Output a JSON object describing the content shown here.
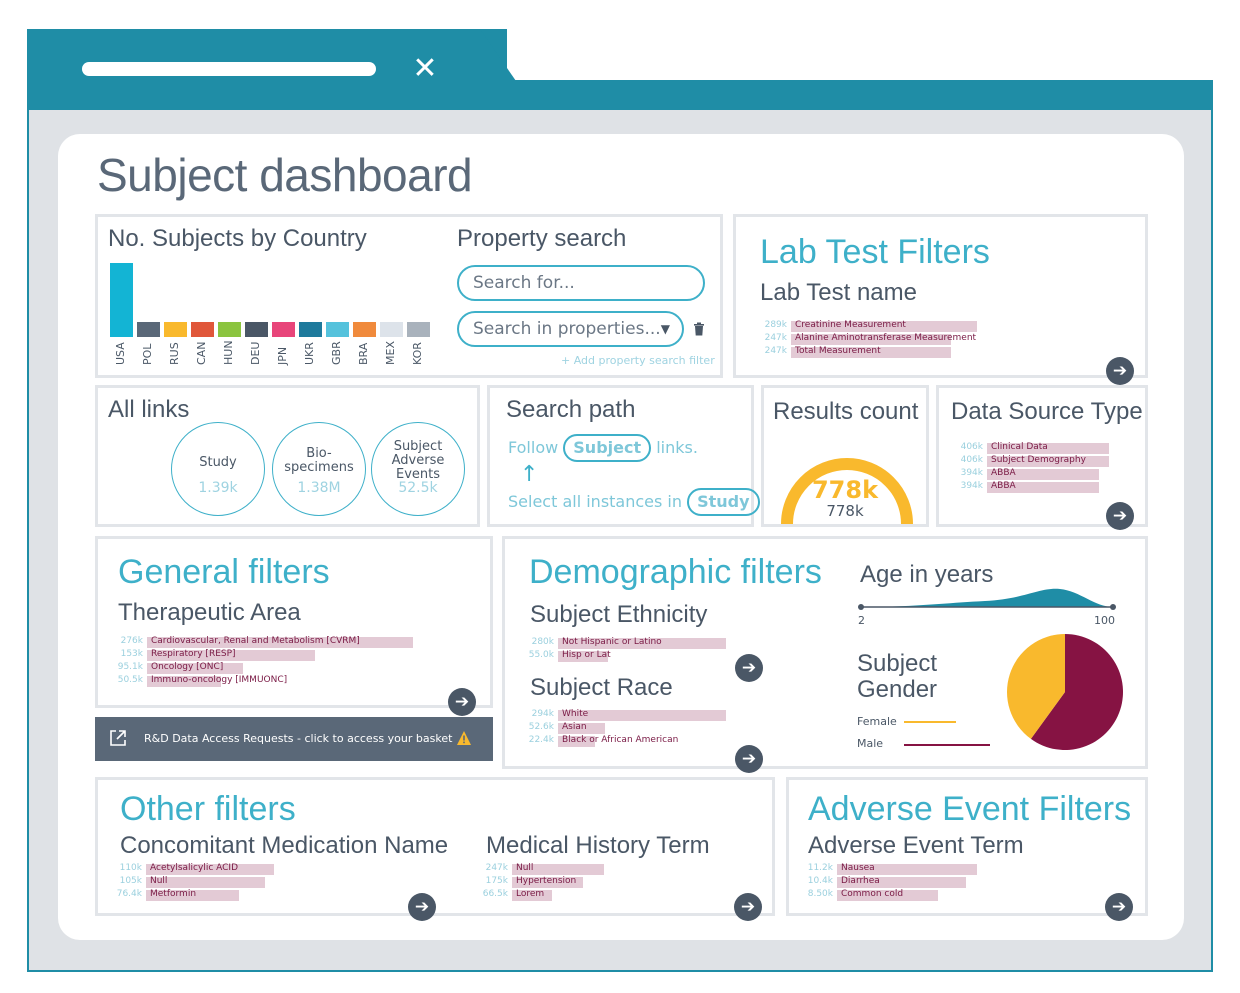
{
  "page_title": "Subject dashboard",
  "colors": {
    "accent": "#3eb0c9",
    "chrome": "#1f8da6",
    "bar": "#e3cad5",
    "bar_text": "#7a1a45",
    "dark": "#4a5766",
    "gauge": "#f9b92d",
    "female": "#f9b92d",
    "male": "#861343"
  },
  "country_card": {
    "title": "No. Subjects by Country",
    "bars": [
      {
        "code": "USA",
        "value": 1.0,
        "color": "#13b4d4"
      },
      {
        "code": "POL",
        "value": 0.2,
        "color": "#5a6878"
      },
      {
        "code": "RUS",
        "value": 0.2,
        "color": "#f9b92d"
      },
      {
        "code": "CAN",
        "value": 0.2,
        "color": "#e0573a"
      },
      {
        "code": "HUN",
        "value": 0.2,
        "color": "#8bc43f"
      },
      {
        "code": "DEU",
        "value": 0.2,
        "color": "#4a5766"
      },
      {
        "code": "JPN",
        "value": 0.2,
        "color": "#e8457a"
      },
      {
        "code": "UKR",
        "value": 0.2,
        "color": "#1e7a9c"
      },
      {
        "code": "GBR",
        "value": 0.2,
        "color": "#55c2dc"
      },
      {
        "code": "BRA",
        "value": 0.2,
        "color": "#f08a3c"
      },
      {
        "code": "MEX",
        "value": 0.2,
        "color": "#dde3ea"
      },
      {
        "code": "KOR",
        "value": 0.2,
        "color": "#a9b2bc"
      }
    ]
  },
  "property_search": {
    "title": "Property search",
    "search_placeholder": "Search for...",
    "properties_placeholder": "Search in properties...",
    "add_filter": "+ Add property search filter"
  },
  "lab_test": {
    "title": "Lab Test Filters",
    "subtitle": "Lab Test name",
    "rows": [
      {
        "count": "289k",
        "label": "Creatinine Measurement",
        "fill": 1.0
      },
      {
        "count": "247k",
        "label": "Alanine Aminotransferase Measurement",
        "fill": 0.86
      },
      {
        "count": "247k",
        "label": "Total Measurement",
        "fill": 0.86
      }
    ]
  },
  "all_links": {
    "title": "All links",
    "nodes": [
      {
        "name": "Study",
        "count": "1.39k"
      },
      {
        "name": "Bio-\nspecimens",
        "count": "1.38M"
      },
      {
        "name": "Subject\nAdverse\nEvents",
        "count": "52.5k"
      }
    ]
  },
  "search_path": {
    "title": "Search path",
    "follow": "Follow",
    "follow_entity": "Subject",
    "links": "links.",
    "select_text": "Select all instances in",
    "select_entity": "Study"
  },
  "results_count": {
    "title": "Results count",
    "value": "778k",
    "sub_value": "778k"
  },
  "data_source": {
    "title": "Data Source Type",
    "rows": [
      {
        "count": "406k",
        "label": "Clinical Data",
        "fill": 1.0
      },
      {
        "count": "406k",
        "label": "Subject Demography",
        "fill": 1.0
      },
      {
        "count": "394k",
        "label": "ABBA",
        "fill": 0.92
      },
      {
        "count": "394k",
        "label": "ABBA",
        "fill": 0.92
      }
    ]
  },
  "general_filters": {
    "title": "General filters",
    "subtitle": "Therapeutic Area",
    "rows": [
      {
        "count": "276k",
        "label": "Cardiovascular, Renal and Metabolism [CVRM]",
        "fill": 1.0
      },
      {
        "count": "153k",
        "label": "Respiratory [RESP]",
        "fill": 0.63
      },
      {
        "count": "95.1k",
        "label": "Oncology [ONC]",
        "fill": 0.36
      },
      {
        "count": "50.5k",
        "label": "Immuno-oncology [IMMUONC]",
        "fill": 0.28
      }
    ]
  },
  "access_bar": {
    "label": "R&D Data Access Requests - click to access your basket"
  },
  "demographic_filters": {
    "title": "Demographic filters",
    "ethnicity": {
      "title": "Subject Ethnicity",
      "rows": [
        {
          "count": "280k",
          "label": "Not Hispanic or Latino",
          "fill": 1.0
        },
        {
          "count": "55.0k",
          "label": "Hisp or Lat",
          "fill": 0.3
        }
      ]
    },
    "race": {
      "title": "Subject Race",
      "rows": [
        {
          "count": "294k",
          "label": "White",
          "fill": 1.0
        },
        {
          "count": "52.6k",
          "label": "Asian",
          "fill": 0.28
        },
        {
          "count": "22.4k",
          "label": "Black or African American",
          "fill": 0.22
        }
      ]
    },
    "age": {
      "title": "Age in years",
      "min": "2",
      "max": "100"
    },
    "gender": {
      "title": "Subject\nGender",
      "female_label": "Female",
      "male_label": "Male",
      "female_share": 0.4,
      "male_share": 0.6
    }
  },
  "other_filters": {
    "title": "Other filters",
    "medication": {
      "title": "Concomitant Medication Name",
      "rows": [
        {
          "count": "110k",
          "label": "Acetylsalicylic ACID",
          "fill": 1.0
        },
        {
          "count": "105k",
          "label": "Null",
          "fill": 0.93
        },
        {
          "count": "76.4k",
          "label": "Metformin",
          "fill": 0.73
        }
      ]
    },
    "history": {
      "title": "Medical History Term",
      "rows": [
        {
          "count": "247k",
          "label": "Null",
          "fill": 1.0
        },
        {
          "count": "175k",
          "label": "Hypertension",
          "fill": 0.77
        },
        {
          "count": "66.5k",
          "label": "Lorem",
          "fill": 0.44
        }
      ]
    }
  },
  "adverse_events": {
    "title": "Adverse Event Filters",
    "subtitle": "Adverse Event Term",
    "rows": [
      {
        "count": "11.2k",
        "label": "Nausea",
        "fill": 1.0
      },
      {
        "count": "10.4k",
        "label": "Diarrhea",
        "fill": 0.92
      },
      {
        "count": "8.50k",
        "label": "Common cold",
        "fill": 0.72
      }
    ]
  }
}
